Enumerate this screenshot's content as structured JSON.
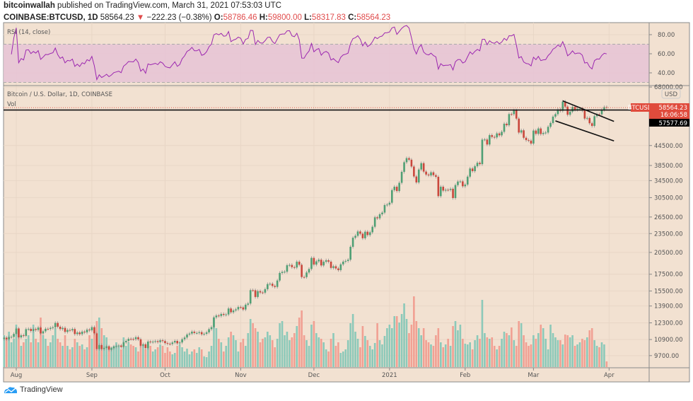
{
  "header": {
    "author": "bitcoinwallah",
    "published_text": "published on TradingView.com, March 31, 2021 07:53:03 UTC",
    "symbol": "COINBASE:BTCUSD, 1D",
    "last": "58564.23",
    "change": "−222.23 (−0.38%)",
    "change_direction": "down",
    "o_label": "O:",
    "o": "58786.46",
    "h_label": "H:",
    "h": "59800.00",
    "l_label": "L:",
    "l": "58317.83",
    "c_label": "C:",
    "c": "58564.23"
  },
  "rsi_pane": {
    "title": "RSI (14, close)",
    "ticks": [
      "80.00",
      "60.00",
      "40.00"
    ],
    "band": [
      30,
      70
    ],
    "line_color": "#9c27b0",
    "band_color": "#e6c3d6"
  },
  "price_pane": {
    "title": "Bitcoin / U.S. Dollar, 1D, COINBASE",
    "vol_label": "Vol",
    "currency": "USD",
    "ticks": [
      "68000.00",
      "44500.00",
      "38500.00",
      "34500.00",
      "30500.00",
      "26500.00",
      "23500.00",
      "20500.00",
      "17500.00",
      "15500.00",
      "13900.00",
      "12300.00",
      "10900.00",
      "9700.00"
    ],
    "last_label": {
      "symbol": "BTCUSD",
      "price": "58564.23",
      "countdown": "16:06:58",
      "color": "#e04b3c"
    },
    "horizontal_line": {
      "price": "57577.69",
      "value": 57577.69
    }
  },
  "logo_text": "TradingView",
  "chart_data": {
    "type": "candlestick",
    "scale": "log",
    "grid": true,
    "x_ticks": [
      "Aug",
      "Sep",
      "Oct",
      "Nov",
      "Dec",
      "2021",
      "Feb",
      "Mar",
      "Apr"
    ],
    "colors": {
      "up": "#4f9f74",
      "down": "#c9473c",
      "vol_up": "#8cc9b9",
      "vol_down": "#f1a093",
      "background": "#f2e1d1"
    },
    "trend_channel": {
      "upper": [
        [
          "2021-03-13",
          61500
        ],
        [
          "2021-04-03",
          53000
        ]
      ],
      "lower": [
        [
          "2021-03-10",
          53200
        ],
        [
          "2021-04-03",
          46000
        ]
      ]
    },
    "months": [
      {
        "month": "2020-07",
        "first_day": 27,
        "closes": [
          11050,
          10920,
          11100,
          11110,
          11350
        ],
        "volume": [
          45,
          40,
          50,
          35,
          40
        ]
      },
      {
        "month": "2020-08",
        "first_day": 1,
        "closes": [
          11800,
          11070,
          11240,
          11190,
          11750,
          11770,
          11600,
          11760,
          11680,
          11890,
          11390,
          11570,
          11780,
          11770,
          11860,
          11910,
          12290,
          11960,
          11760,
          11860,
          11520,
          11680,
          11650,
          11760,
          11340,
          11470,
          11330,
          11540,
          11480,
          11710,
          11650
        ],
        "volume": [
          60,
          55,
          30,
          35,
          40,
          45,
          35,
          60,
          40,
          35,
          70,
          45,
          40,
          30,
          35,
          45,
          55,
          40,
          35,
          30,
          45,
          30,
          25,
          28,
          40,
          35,
          30,
          32,
          25,
          28,
          45
        ]
      },
      {
        "month": "2020-09",
        "first_day": 1,
        "closes": [
          11920,
          11400,
          10170,
          10470,
          10170,
          10260,
          10370,
          10130,
          10230,
          10360,
          10400,
          10440,
          10330,
          10680,
          10790,
          10950,
          10940,
          10930,
          11080,
          10920,
          10420,
          10530,
          10240,
          10740,
          10690,
          10730,
          10770,
          10700,
          10840,
          10780
        ],
        "volume": [
          40,
          50,
          65,
          70,
          55,
          45,
          42,
          30,
          28,
          30,
          35,
          30,
          25,
          42,
          30,
          35,
          32,
          30,
          28,
          22,
          38,
          30,
          25,
          32,
          30,
          22,
          25,
          28,
          32,
          30
        ]
      },
      {
        "month": "2020-10",
        "first_day": 1,
        "closes": [
          10620,
          10570,
          10550,
          10670,
          10790,
          10600,
          10670,
          10920,
          11060,
          11300,
          11380,
          11540,
          11430,
          11430,
          11500,
          11320,
          11360,
          11480,
          11750,
          11920,
          12800,
          12970,
          12930,
          13120,
          13030,
          13070,
          13650,
          13280,
          13460,
          13560,
          13800
        ],
        "volume": [
          20,
          28,
          22,
          18,
          20,
          30,
          32,
          28,
          22,
          26,
          18,
          22,
          25,
          20,
          28,
          25,
          15,
          14,
          22,
          30,
          70,
          55,
          40,
          35,
          22,
          30,
          42,
          50,
          45,
          38,
          22
        ]
      },
      {
        "month": "2020-11",
        "first_day": 1,
        "closes": [
          13760,
          13550,
          14030,
          14150,
          15590,
          15580,
          14840,
          15480,
          15330,
          15310,
          15700,
          16290,
          16330,
          16080,
          15960,
          16720,
          17660,
          17800,
          17820,
          18680,
          18720,
          18420,
          18370,
          19160,
          18740,
          17150,
          17140,
          17720,
          18180,
          19700
        ],
        "volume": [
          35,
          40,
          30,
          48,
          68,
          62,
          55,
          50,
          35,
          40,
          42,
          50,
          45,
          38,
          28,
          40,
          62,
          65,
          45,
          50,
          38,
          42,
          48,
          58,
          70,
          80,
          45,
          38,
          30,
          60
        ]
      },
      {
        "month": "2020-12",
        "first_day": 1,
        "closes": [
          18770,
          19210,
          19440,
          18650,
          19150,
          19360,
          19170,
          18320,
          18540,
          18250,
          18030,
          18800,
          19170,
          19270,
          19440,
          21350,
          22800,
          23120,
          23860,
          23480,
          22720,
          23820,
          23250,
          23720,
          24690,
          26440,
          26250,
          27030,
          27360,
          28890,
          28990
        ],
        "volume": [
          65,
          48,
          42,
          40,
          35,
          25,
          22,
          40,
          48,
          30,
          35,
          20,
          22,
          25,
          38,
          62,
          75,
          50,
          40,
          28,
          58,
          44,
          38,
          30,
          25,
          34,
          62,
          38,
          32,
          44,
          55
        ]
      },
      {
        "month": "2021-01",
        "first_day": 1,
        "closes": [
          29390,
          32200,
          33000,
          31990,
          33950,
          36770,
          39410,
          40600,
          40150,
          38210,
          35550,
          34050,
          37390,
          39150,
          36830,
          36050,
          35820,
          36640,
          35890,
          35470,
          30830,
          33000,
          32090,
          32280,
          32250,
          32510,
          30410,
          33400,
          34270,
          34310,
          33110
        ],
        "volume": [
          60,
          55,
          72,
          72,
          63,
          75,
          90,
          68,
          48,
          60,
          100,
          65,
          55,
          45,
          55,
          38,
          35,
          32,
          30,
          45,
          55,
          35,
          28,
          32,
          40,
          30,
          58,
          65,
          52,
          60,
          40
        ]
      },
      {
        "month": "2021-02",
        "first_day": 1,
        "closes": [
          33530,
          35510,
          37670,
          36950,
          38290,
          39260,
          38880,
          46450,
          46480,
          44830,
          47980,
          47370,
          47190,
          48580,
          47910,
          49150,
          52120,
          51550,
          55900,
          55850,
          57410,
          54090,
          48890,
          49680,
          47070,
          46280,
          46110,
          45140
        ],
        "volume": [
          33,
          32,
          35,
          25,
          38,
          45,
          40,
          95,
          48,
          42,
          40,
          42,
          30,
          25,
          30,
          40,
          50,
          48,
          45,
          56,
          38,
          30,
          65,
          62,
          45,
          35,
          30,
          32
        ]
      },
      {
        "month": "2021-03",
        "first_day": 1,
        "closes": [
          49590,
          48440,
          50350,
          48370,
          48760,
          48880,
          50970,
          52390,
          54880,
          55860,
          57800,
          57230,
          61180,
          59000,
          55630,
          56900,
          58910,
          57660,
          58100,
          58100,
          57350,
          54100,
          54340,
          52300,
          51300,
          55030,
          55840,
          55780,
          57630,
          58790,
          58564.23
        ],
        "volume": [
          45,
          40,
          48,
          60,
          55,
          40,
          25,
          60,
          48,
          42,
          38,
          38,
          32,
          46,
          45,
          42,
          45,
          30,
          32,
          35,
          40,
          38,
          42,
          52,
          55,
          38,
          30,
          28,
          35,
          32,
          8
        ]
      }
    ]
  }
}
